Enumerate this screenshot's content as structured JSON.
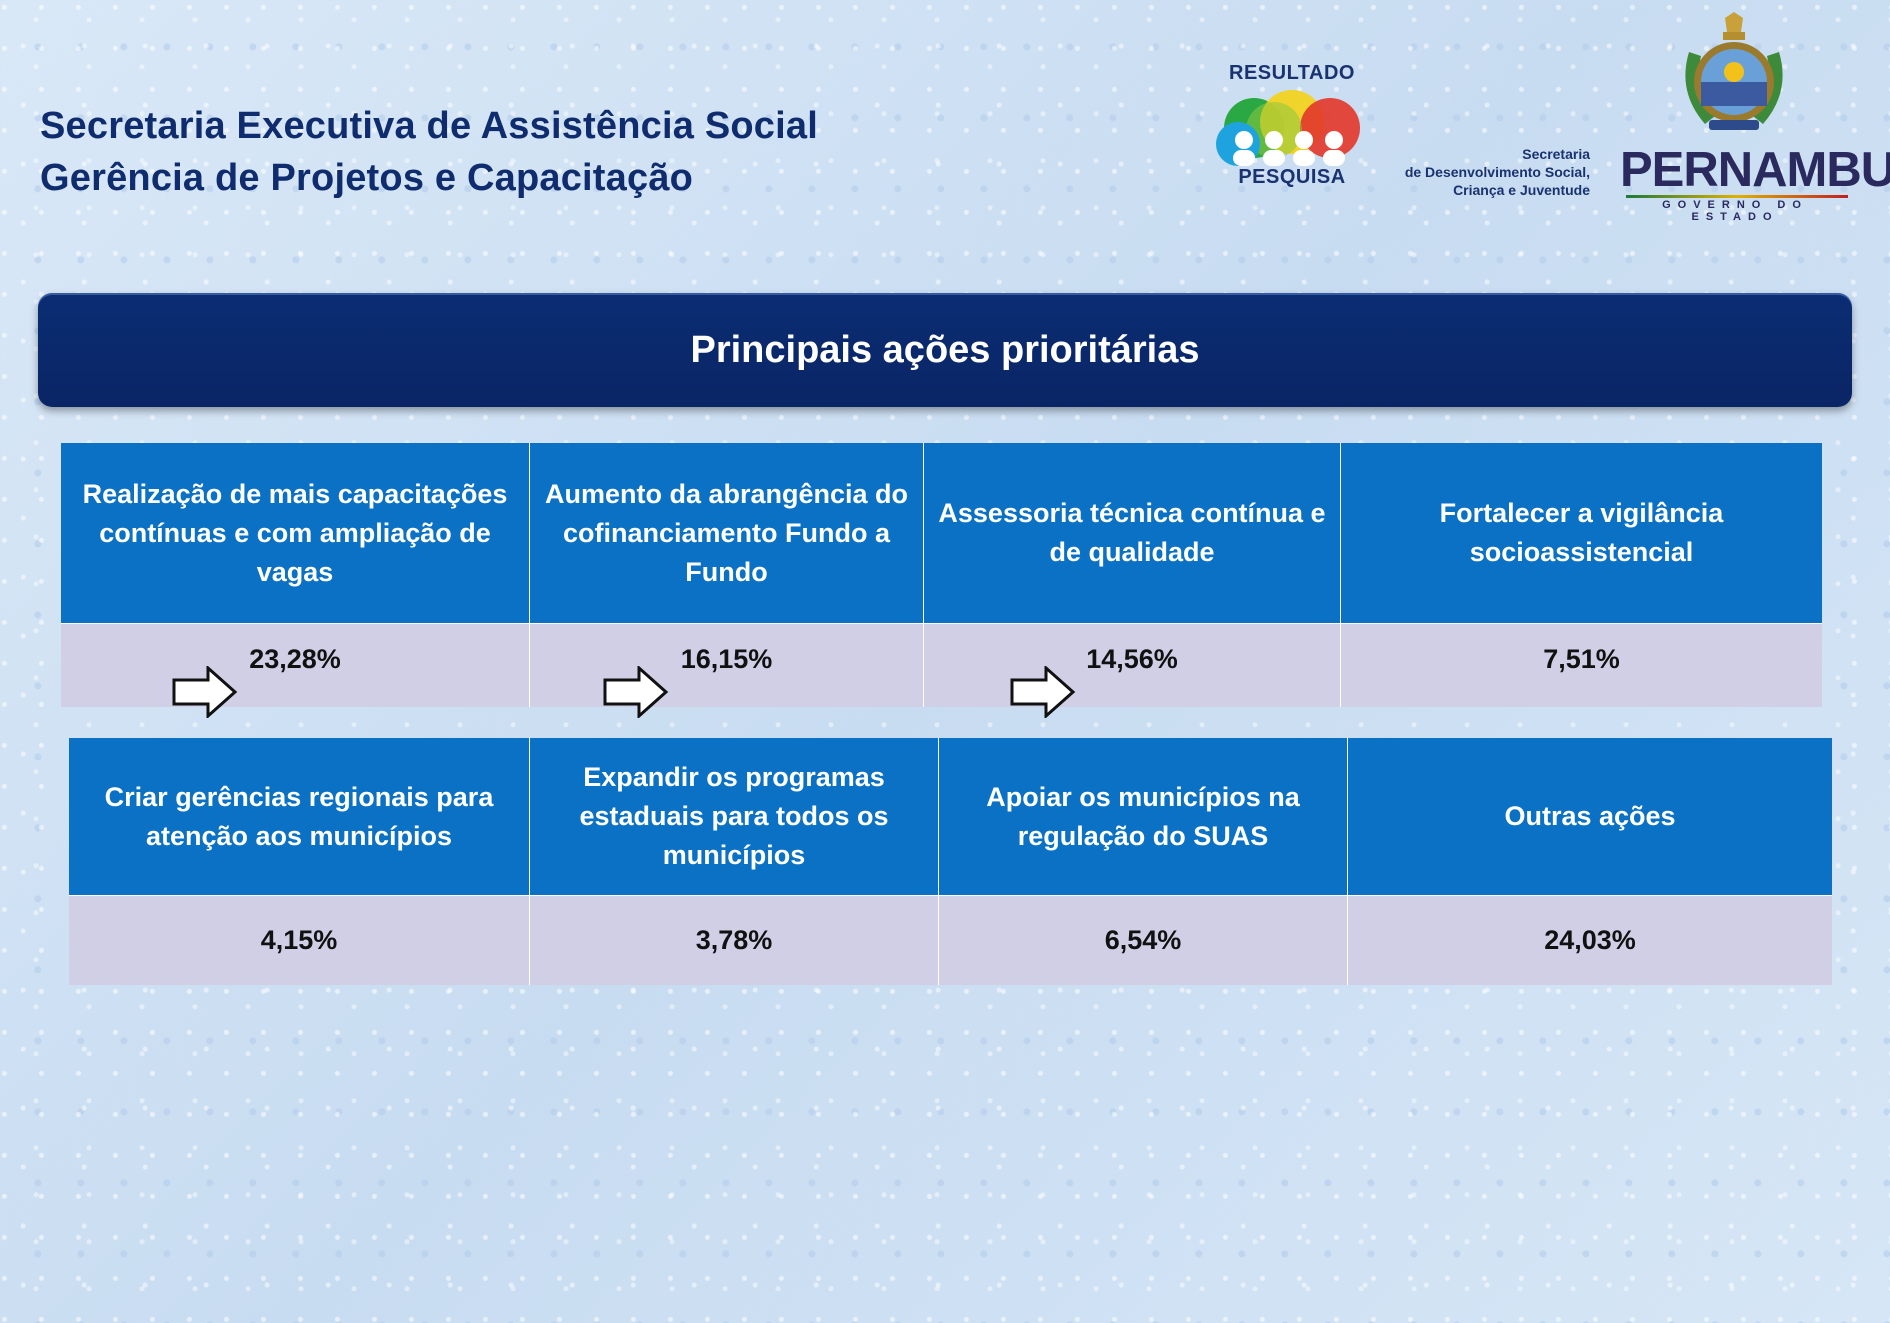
{
  "header": {
    "line1": "Secretaria Executiva de Assistência Social",
    "line2": "Gerência de Projetos e Capacitação"
  },
  "logos": {
    "resultado_top": "RESULTADO",
    "resultado_bottom": "PESQUISA",
    "secretaria_line1": "Secretaria",
    "secretaria_line2": "de Desenvolvimento Social,",
    "secretaria_line3": "Criança e Juventude",
    "state_name": "PERNAMBUCO",
    "state_sub": "GOVERNO DO ESTADO"
  },
  "banner": {
    "title": "Principais ações prioritárias"
  },
  "table1": [
    {
      "label": "Realização de mais capacitações contínuas e com ampliação de vagas",
      "value": "23,28%"
    },
    {
      "label": "Aumento da abrangência do cofinanciamento Fundo a Fundo",
      "value": "16,15%"
    },
    {
      "label": "Assessoria técnica contínua e de qualidade",
      "value": "14,56%"
    },
    {
      "label": "Fortalecer a vigilância socioassistencial",
      "value": "7,51%"
    }
  ],
  "table2": [
    {
      "label": "Criar gerências regionais para atenção aos municípios",
      "value": "4,15%"
    },
    {
      "label": "Expandir os programas estaduais para todos os municípios",
      "value": "3,78%"
    },
    {
      "label": "Apoiar os municípios na regulação do SUAS",
      "value": "6,54%"
    },
    {
      "label": "Outras ações",
      "value": "24,03%"
    }
  ],
  "colors": {
    "header_text": "#0f2d6e",
    "banner_bg": "#0b2d73",
    "cell_header_bg": "#0b71c4",
    "cell_value_bg": "#d0cfe6"
  },
  "icons": [
    "right-arrow-icon",
    "resultado-pesquisa-logo",
    "pernambuco-coat-of-arms"
  ]
}
